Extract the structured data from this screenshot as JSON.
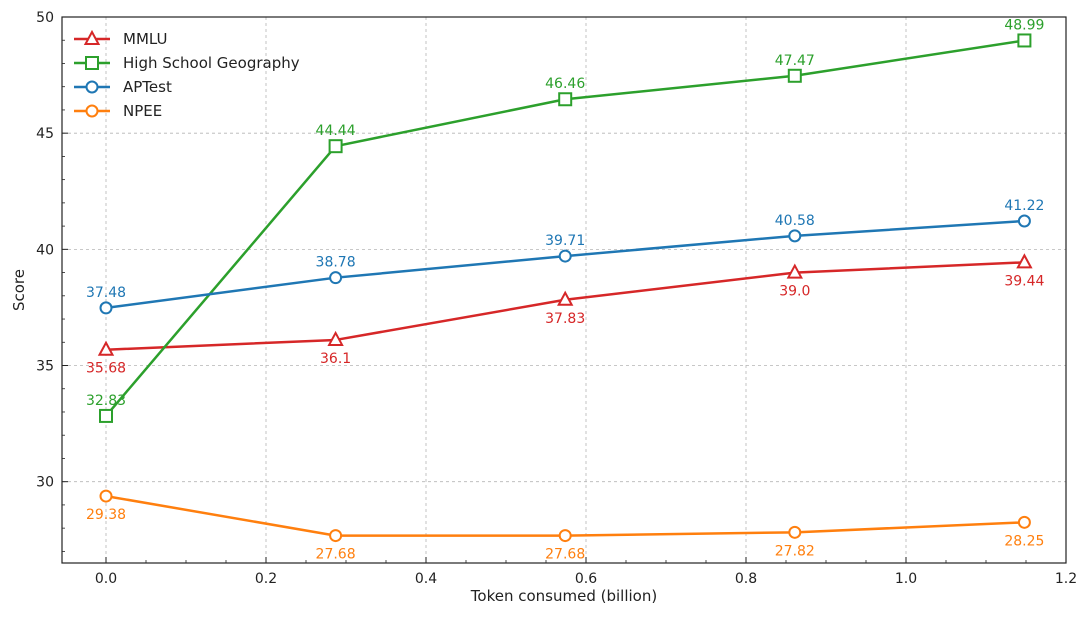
{
  "chart_data": {
    "type": "line",
    "title": "",
    "xlabel": "Token consumed (billion)",
    "ylabel": "Score",
    "xlim": [
      -0.055,
      1.2
    ],
    "ylim": [
      26.5,
      50
    ],
    "xticks": [
      0.0,
      0.2,
      0.4,
      0.6,
      0.8,
      1.0,
      1.2
    ],
    "xtick_labels": [
      "0.0",
      "0.2",
      "0.4",
      "0.6",
      "0.8",
      "1.0",
      "1.2"
    ],
    "yticks": [
      30,
      35,
      40,
      45,
      50
    ],
    "ytick_labels": [
      "30",
      "35",
      "40",
      "45",
      "50"
    ],
    "grid": true,
    "legend_position": "top-left",
    "x": [
      0.0,
      0.287,
      0.574,
      0.861,
      1.148
    ],
    "series": [
      {
        "name": "MMLU",
        "color": "#d62728",
        "marker": "triangle",
        "values": [
          35.68,
          36.1,
          37.83,
          39.0,
          39.44
        ],
        "labels": [
          "35.68",
          "36.1",
          "37.83",
          "39.0",
          "39.44"
        ],
        "label_position": "below"
      },
      {
        "name": "High School Geography",
        "color": "#2ca02c",
        "marker": "square",
        "values": [
          32.83,
          44.44,
          46.46,
          47.47,
          48.99
        ],
        "labels": [
          "32.83",
          "44.44",
          "46.46",
          "47.47",
          "48.99"
        ],
        "label_position": "above"
      },
      {
        "name": "APTest",
        "color": "#1f77b4",
        "marker": "circle",
        "values": [
          37.48,
          38.78,
          39.71,
          40.58,
          41.22
        ],
        "labels": [
          "37.48",
          "38.78",
          "39.71",
          "40.58",
          "41.22"
        ],
        "label_position": "above"
      },
      {
        "name": "NPEE",
        "color": "#ff7f0e",
        "marker": "circle",
        "values": [
          29.38,
          27.68,
          27.68,
          27.82,
          28.25
        ],
        "labels": [
          "29.38",
          "27.68",
          "27.68",
          "27.82",
          "28.25"
        ],
        "label_position": "below"
      }
    ]
  }
}
